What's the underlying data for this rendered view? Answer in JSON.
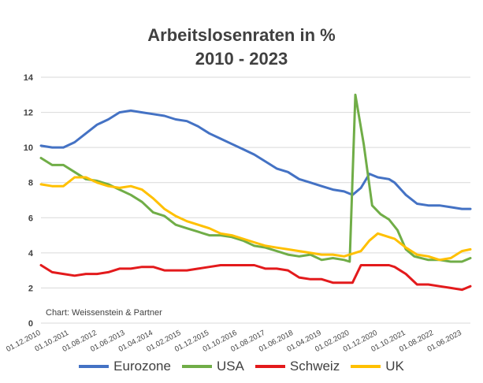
{
  "chart_data": {
    "type": "line",
    "title_line1": "Arbeitslosenraten in %",
    "title_line2": "2010 - 2023",
    "credit": "Chart: Weissenstein & Partner",
    "ylim": [
      0,
      14
    ],
    "yticks": [
      "0",
      "2",
      "4",
      "6",
      "8",
      "10",
      "12",
      "14"
    ],
    "grid": "horizontal",
    "legend_position": "bottom",
    "x_start": "2010-12",
    "x_end": "2023-09",
    "x_tick_labels": [
      "01.12.2010",
      "01.10.2011",
      "01.08.2012",
      "01.06.2013",
      "01.04.2014",
      "01.02.2015",
      "01.12.2015",
      "01.10.2016",
      "01.08.2017",
      "01.06.2018",
      "01.04.2019",
      "01.02.2020",
      "01.12.2020",
      "01.10.2021",
      "01.08.2022",
      "01.06.2023"
    ],
    "series": [
      {
        "name": "Eurozone",
        "color": "#4472c4",
        "points": [
          [
            "2010-12",
            10.1
          ],
          [
            "2011-04",
            10.0
          ],
          [
            "2011-08",
            10.0
          ],
          [
            "2011-12",
            10.3
          ],
          [
            "2012-04",
            10.8
          ],
          [
            "2012-08",
            11.3
          ],
          [
            "2012-12",
            11.6
          ],
          [
            "2013-04",
            12.0
          ],
          [
            "2013-08",
            12.1
          ],
          [
            "2013-12",
            12.0
          ],
          [
            "2014-04",
            11.9
          ],
          [
            "2014-08",
            11.8
          ],
          [
            "2014-12",
            11.6
          ],
          [
            "2015-04",
            11.5
          ],
          [
            "2015-08",
            11.2
          ],
          [
            "2015-12",
            10.8
          ],
          [
            "2016-04",
            10.5
          ],
          [
            "2016-08",
            10.2
          ],
          [
            "2016-12",
            9.9
          ],
          [
            "2017-04",
            9.6
          ],
          [
            "2017-08",
            9.2
          ],
          [
            "2017-12",
            8.8
          ],
          [
            "2018-04",
            8.6
          ],
          [
            "2018-08",
            8.2
          ],
          [
            "2018-12",
            8.0
          ],
          [
            "2019-04",
            7.8
          ],
          [
            "2019-08",
            7.6
          ],
          [
            "2019-12",
            7.5
          ],
          [
            "2020-03",
            7.3
          ],
          [
            "2020-06",
            7.7
          ],
          [
            "2020-09",
            8.5
          ],
          [
            "2020-12",
            8.3
          ],
          [
            "2021-04",
            8.2
          ],
          [
            "2021-06",
            8.0
          ],
          [
            "2021-10",
            7.3
          ],
          [
            "2022-02",
            6.8
          ],
          [
            "2022-06",
            6.7
          ],
          [
            "2022-10",
            6.7
          ],
          [
            "2023-02",
            6.6
          ],
          [
            "2023-06",
            6.5
          ],
          [
            "2023-09",
            6.5
          ]
        ]
      },
      {
        "name": "USA",
        "color": "#70ad47",
        "points": [
          [
            "2010-12",
            9.4
          ],
          [
            "2011-04",
            9.0
          ],
          [
            "2011-08",
            9.0
          ],
          [
            "2011-12",
            8.6
          ],
          [
            "2012-04",
            8.2
          ],
          [
            "2012-08",
            8.1
          ],
          [
            "2012-12",
            7.9
          ],
          [
            "2013-04",
            7.6
          ],
          [
            "2013-08",
            7.3
          ],
          [
            "2013-12",
            6.9
          ],
          [
            "2014-04",
            6.3
          ],
          [
            "2014-08",
            6.1
          ],
          [
            "2014-12",
            5.6
          ],
          [
            "2015-04",
            5.4
          ],
          [
            "2015-08",
            5.2
          ],
          [
            "2015-12",
            5.0
          ],
          [
            "2016-04",
            5.0
          ],
          [
            "2016-08",
            4.9
          ],
          [
            "2016-12",
            4.7
          ],
          [
            "2017-04",
            4.4
          ],
          [
            "2017-08",
            4.3
          ],
          [
            "2017-12",
            4.1
          ],
          [
            "2018-04",
            3.9
          ],
          [
            "2018-08",
            3.8
          ],
          [
            "2018-12",
            3.9
          ],
          [
            "2019-04",
            3.6
          ],
          [
            "2019-08",
            3.7
          ],
          [
            "2019-12",
            3.6
          ],
          [
            "2020-02",
            3.5
          ],
          [
            "2020-04",
            13.0
          ],
          [
            "2020-07",
            10.2
          ],
          [
            "2020-10",
            6.7
          ],
          [
            "2021-01",
            6.2
          ],
          [
            "2021-04",
            5.9
          ],
          [
            "2021-07",
            5.3
          ],
          [
            "2021-10",
            4.2
          ],
          [
            "2022-01",
            3.8
          ],
          [
            "2022-06",
            3.6
          ],
          [
            "2022-10",
            3.6
          ],
          [
            "2023-02",
            3.5
          ],
          [
            "2023-06",
            3.5
          ],
          [
            "2023-09",
            3.7
          ]
        ]
      },
      {
        "name": "Schweiz",
        "color": "#e31a1c",
        "points": [
          [
            "2010-12",
            3.3
          ],
          [
            "2011-04",
            2.9
          ],
          [
            "2011-08",
            2.8
          ],
          [
            "2011-12",
            2.7
          ],
          [
            "2012-04",
            2.8
          ],
          [
            "2012-08",
            2.8
          ],
          [
            "2012-12",
            2.9
          ],
          [
            "2013-04",
            3.1
          ],
          [
            "2013-08",
            3.1
          ],
          [
            "2013-12",
            3.2
          ],
          [
            "2014-04",
            3.2
          ],
          [
            "2014-08",
            3.0
          ],
          [
            "2014-12",
            3.0
          ],
          [
            "2015-04",
            3.0
          ],
          [
            "2015-08",
            3.1
          ],
          [
            "2015-12",
            3.2
          ],
          [
            "2016-04",
            3.3
          ],
          [
            "2016-08",
            3.3
          ],
          [
            "2016-12",
            3.3
          ],
          [
            "2017-04",
            3.3
          ],
          [
            "2017-08",
            3.1
          ],
          [
            "2017-12",
            3.1
          ],
          [
            "2018-04",
            3.0
          ],
          [
            "2018-08",
            2.6
          ],
          [
            "2018-12",
            2.5
          ],
          [
            "2019-04",
            2.5
          ],
          [
            "2019-08",
            2.3
          ],
          [
            "2019-12",
            2.3
          ],
          [
            "2020-03",
            2.3
          ],
          [
            "2020-06",
            3.3
          ],
          [
            "2020-09",
            3.3
          ],
          [
            "2020-12",
            3.3
          ],
          [
            "2021-04",
            3.3
          ],
          [
            "2021-06",
            3.2
          ],
          [
            "2021-10",
            2.8
          ],
          [
            "2022-02",
            2.2
          ],
          [
            "2022-06",
            2.2
          ],
          [
            "2022-10",
            2.1
          ],
          [
            "2023-02",
            2.0
          ],
          [
            "2023-06",
            1.9
          ],
          [
            "2023-09",
            2.1
          ]
        ]
      },
      {
        "name": "UK",
        "color": "#ffc000",
        "points": [
          [
            "2010-12",
            7.9
          ],
          [
            "2011-04",
            7.8
          ],
          [
            "2011-08",
            7.8
          ],
          [
            "2011-12",
            8.3
          ],
          [
            "2012-04",
            8.3
          ],
          [
            "2012-08",
            8.0
          ],
          [
            "2012-12",
            7.8
          ],
          [
            "2013-04",
            7.7
          ],
          [
            "2013-08",
            7.8
          ],
          [
            "2013-12",
            7.6
          ],
          [
            "2014-04",
            7.1
          ],
          [
            "2014-08",
            6.5
          ],
          [
            "2014-12",
            6.1
          ],
          [
            "2015-04",
            5.8
          ],
          [
            "2015-08",
            5.6
          ],
          [
            "2015-12",
            5.4
          ],
          [
            "2016-04",
            5.1
          ],
          [
            "2016-08",
            5.0
          ],
          [
            "2016-12",
            4.8
          ],
          [
            "2017-04",
            4.6
          ],
          [
            "2017-08",
            4.4
          ],
          [
            "2017-12",
            4.3
          ],
          [
            "2018-04",
            4.2
          ],
          [
            "2018-08",
            4.1
          ],
          [
            "2018-12",
            4.0
          ],
          [
            "2019-04",
            3.9
          ],
          [
            "2019-08",
            3.9
          ],
          [
            "2019-12",
            3.8
          ],
          [
            "2020-02",
            3.9
          ],
          [
            "2020-06",
            4.1
          ],
          [
            "2020-09",
            4.7
          ],
          [
            "2020-12",
            5.1
          ],
          [
            "2021-04",
            4.9
          ],
          [
            "2021-06",
            4.8
          ],
          [
            "2021-10",
            4.3
          ],
          [
            "2022-02",
            3.9
          ],
          [
            "2022-06",
            3.8
          ],
          [
            "2022-10",
            3.6
          ],
          [
            "2023-02",
            3.7
          ],
          [
            "2023-06",
            4.1
          ],
          [
            "2023-09",
            4.2
          ]
        ]
      }
    ]
  }
}
